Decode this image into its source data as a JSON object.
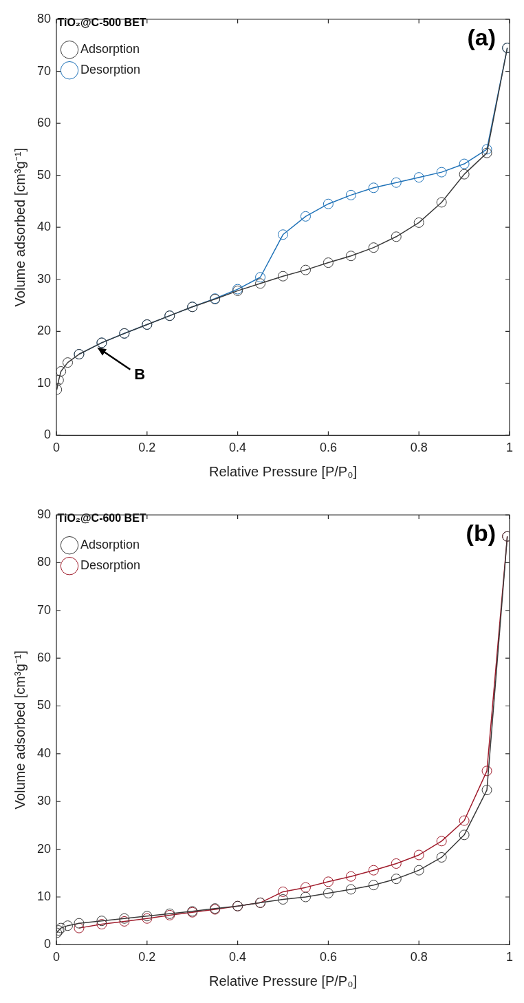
{
  "chart_data": [
    {
      "type": "line",
      "legend_title": "TiO₂@C-500 BET",
      "xlabel": "Relative Pressure [P/P₀]",
      "ylabel": "Volume adsorbed [cm³g⁻¹]",
      "xlim": [
        0,
        1
      ],
      "xticks": [
        0,
        0.2,
        0.4,
        0.6,
        0.8,
        1
      ],
      "ylim": [
        0,
        80
      ],
      "yticks": [
        0,
        10,
        20,
        30,
        40,
        50,
        60,
        70,
        80
      ],
      "grid": false,
      "legend": "top left",
      "marker": "circle",
      "line_style": "solid",
      "annotations": [
        "(a)",
        {
          "text": "B",
          "x": 0.09,
          "y": 16.9
        }
      ],
      "series": [
        {
          "name": "Adsorption",
          "color": "#3a3a3a",
          "x": [
            0.001,
            0.005,
            0.01,
            0.025,
            0.05,
            0.1,
            0.15,
            0.2,
            0.25,
            0.3,
            0.35,
            0.4,
            0.45,
            0.5,
            0.55,
            0.6,
            0.65,
            0.7,
            0.75,
            0.8,
            0.85,
            0.9,
            0.95,
            0.995
          ],
          "values": [
            8.8,
            10.6,
            12.3,
            14.0,
            15.6,
            17.8,
            19.6,
            21.3,
            23.0,
            24.7,
            26.2,
            27.8,
            29.2,
            30.6,
            31.8,
            33.2,
            34.5,
            36.1,
            38.2,
            40.9,
            44.8,
            50.2,
            54.3,
            74.5
          ]
        },
        {
          "name": "Desorption",
          "color": "#1f72b8",
          "x": [
            0.995,
            0.95,
            0.9,
            0.85,
            0.8,
            0.75,
            0.7,
            0.65,
            0.6,
            0.55,
            0.5,
            0.45,
            0.4,
            0.35,
            0.3,
            0.25,
            0.2,
            0.15,
            0.1,
            0.05
          ],
          "values": [
            74.5,
            55.0,
            52.2,
            50.6,
            49.6,
            48.6,
            47.6,
            46.2,
            44.5,
            42.1,
            38.6,
            30.4,
            28.1,
            26.3,
            24.7,
            23.0,
            21.3,
            19.6,
            17.8,
            15.6
          ]
        }
      ]
    },
    {
      "type": "line",
      "legend_title": "TiO₂@C-600 BET",
      "xlabel": "Relative Pressure [P/P₀]",
      "ylabel": "Volume adsorbed [cm³g⁻¹]",
      "xlim": [
        0,
        1
      ],
      "xticks": [
        0,
        0.2,
        0.4,
        0.6,
        0.8,
        1
      ],
      "ylim": [
        0,
        90
      ],
      "yticks": [
        0,
        10,
        20,
        30,
        40,
        50,
        60,
        70,
        80,
        90
      ],
      "grid": false,
      "legend": "top left",
      "marker": "circle",
      "line_style": "solid",
      "annotations": [
        "(b)"
      ],
      "series": [
        {
          "name": "Adsorption",
          "color": "#3a3a3a",
          "x": [
            0.001,
            0.005,
            0.01,
            0.025,
            0.05,
            0.1,
            0.15,
            0.2,
            0.25,
            0.3,
            0.35,
            0.4,
            0.45,
            0.5,
            0.55,
            0.6,
            0.65,
            0.7,
            0.75,
            0.8,
            0.85,
            0.9,
            0.95,
            0.995
          ],
          "values": [
            2.5,
            3.0,
            3.5,
            4.0,
            4.5,
            5.0,
            5.5,
            6.0,
            6.5,
            7.0,
            7.6,
            8.1,
            8.8,
            9.5,
            10.0,
            10.8,
            11.6,
            12.5,
            13.8,
            15.6,
            18.3,
            23.0,
            32.4,
            85.5
          ]
        },
        {
          "name": "Desorption",
          "color": "#a01c2c",
          "x": [
            0.995,
            0.95,
            0.9,
            0.85,
            0.8,
            0.75,
            0.7,
            0.65,
            0.6,
            0.55,
            0.5,
            0.45,
            0.4,
            0.35,
            0.3,
            0.25,
            0.2,
            0.15,
            0.1,
            0.05
          ],
          "values": [
            85.5,
            36.4,
            26.0,
            21.7,
            18.8,
            17.0,
            15.6,
            14.3,
            13.2,
            12.0,
            11.1,
            8.8,
            8.1,
            7.4,
            6.8,
            6.2,
            5.5,
            4.9,
            4.3,
            3.5
          ]
        }
      ]
    }
  ]
}
